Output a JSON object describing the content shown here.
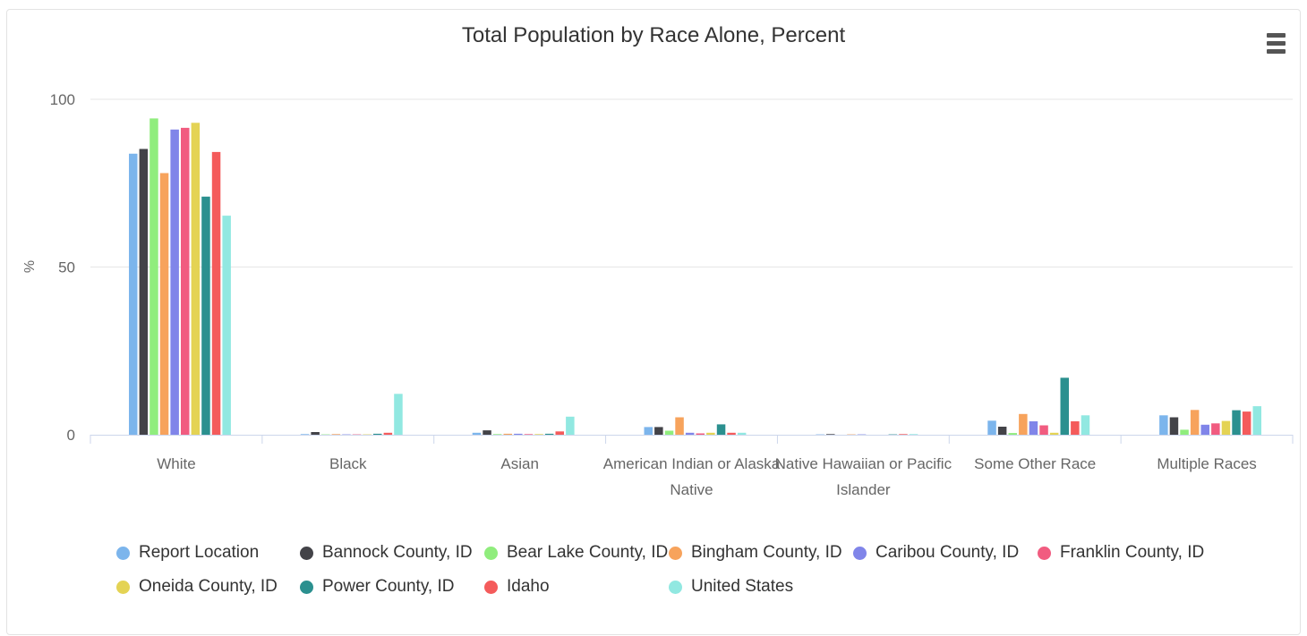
{
  "menu": {
    "icon": "hamburger-menu-icon"
  },
  "chart_data": {
    "type": "bar",
    "title": "Total Population by Race Alone, Percent",
    "ylabel": "%",
    "ylim": [
      0,
      100
    ],
    "yticks": [
      0,
      50,
      100
    ],
    "grid": true,
    "legend_position": "bottom",
    "categories": [
      "White",
      "Black",
      "Asian",
      "American Indian or Alaska Native",
      "Native Hawaiian or Pacific Islander",
      "Some Other Race",
      "Multiple Races"
    ],
    "category_label_lines": [
      [
        "White"
      ],
      [
        "Black"
      ],
      [
        "Asian"
      ],
      [
        "American Indian or Alaska",
        "Native"
      ],
      [
        "Native Hawaiian or Pacific",
        "Islander"
      ],
      [
        "Some Other Race"
      ],
      [
        "Multiple Races"
      ]
    ],
    "series": [
      {
        "name": "Report Location",
        "color": "#7cb5ec",
        "values": [
          83.8,
          0.2,
          0.6,
          2.3,
          0.1,
          4.2,
          5.8
        ]
      },
      {
        "name": "Bannock County, ID",
        "color": "#434348",
        "values": [
          85.2,
          0.8,
          1.3,
          2.3,
          0.2,
          2.4,
          5.2
        ]
      },
      {
        "name": "Bear Lake County, ID",
        "color": "#90ed7d",
        "values": [
          94.3,
          0.1,
          0.2,
          1.2,
          0.0,
          0.5,
          1.5
        ]
      },
      {
        "name": "Bingham County, ID",
        "color": "#f7a35c",
        "values": [
          78.0,
          0.2,
          0.3,
          5.2,
          0.1,
          6.2,
          7.4
        ]
      },
      {
        "name": "Caribou County, ID",
        "color": "#8085e9",
        "values": [
          91.0,
          0.1,
          0.3,
          0.6,
          0.1,
          4.0,
          3.0
        ]
      },
      {
        "name": "Franklin County, ID",
        "color": "#f15c80",
        "values": [
          91.5,
          0.1,
          0.2,
          0.4,
          0.0,
          2.8,
          3.4
        ]
      },
      {
        "name": "Oneida County, ID",
        "color": "#e4d354",
        "values": [
          93.0,
          0.1,
          0.2,
          0.6,
          0.0,
          0.6,
          4.1
        ]
      },
      {
        "name": "Power County, ID",
        "color": "#2b908f",
        "values": [
          71.0,
          0.3,
          0.3,
          3.1,
          0.1,
          17.0,
          7.3
        ]
      },
      {
        "name": "Idaho",
        "color": "#f45b5b",
        "values": [
          84.3,
          0.6,
          1.0,
          0.6,
          0.2,
          4.0,
          6.9
        ]
      },
      {
        "name": "United States",
        "color": "#91e8e1",
        "values": [
          65.3,
          12.2,
          5.4,
          0.6,
          0.2,
          5.8,
          8.5
        ]
      }
    ]
  }
}
